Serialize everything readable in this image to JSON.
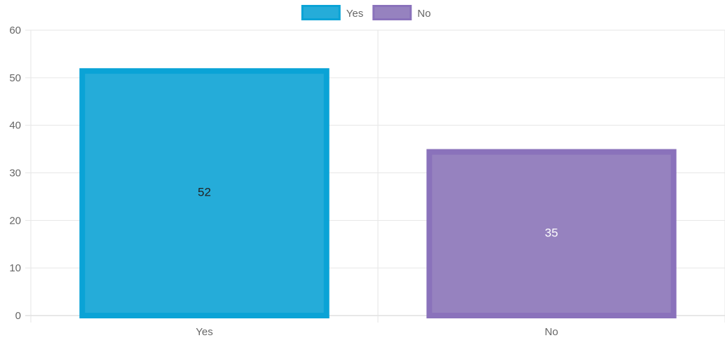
{
  "chart_data": {
    "type": "bar",
    "categories": [
      "Yes",
      "No"
    ],
    "values": [
      52,
      35
    ],
    "colors": {
      "Yes": {
        "fill": "#25acd9",
        "border": "#0aa3d6"
      },
      "No": {
        "fill": "#9682bf",
        "border": "#8a72bb"
      }
    },
    "data_label_colors": [
      "#222222",
      "#ffffff"
    ],
    "legend": {
      "position": "top",
      "items": [
        "Yes",
        "No"
      ]
    },
    "ylim": [
      0,
      60
    ],
    "yticks": [
      0,
      10,
      20,
      30,
      40,
      50,
      60
    ],
    "grid": true,
    "title": "",
    "xlabel": "",
    "ylabel": ""
  }
}
